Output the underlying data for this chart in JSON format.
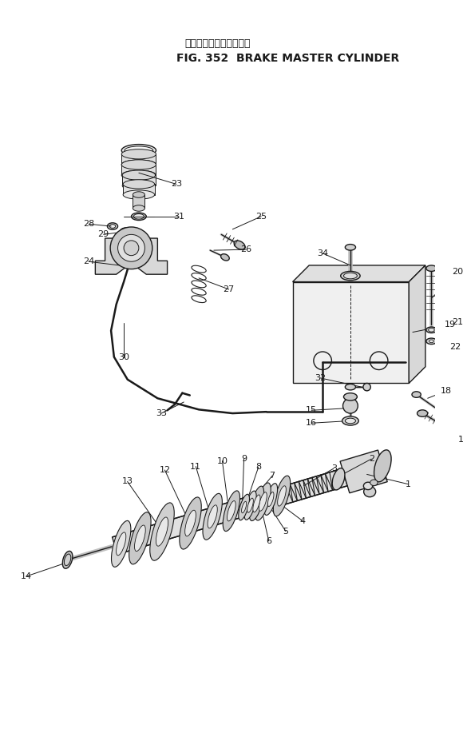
{
  "title_japanese": "ブレーキマスタシリンダ",
  "title_english": "FIG. 352  BRAKE MASTER CYLINDER",
  "bg_color": "#ffffff",
  "line_color": "#1a1a1a",
  "text_color": "#1a1a1a",
  "fig_w": 5.8,
  "fig_h": 9.42,
  "dpi": 100
}
